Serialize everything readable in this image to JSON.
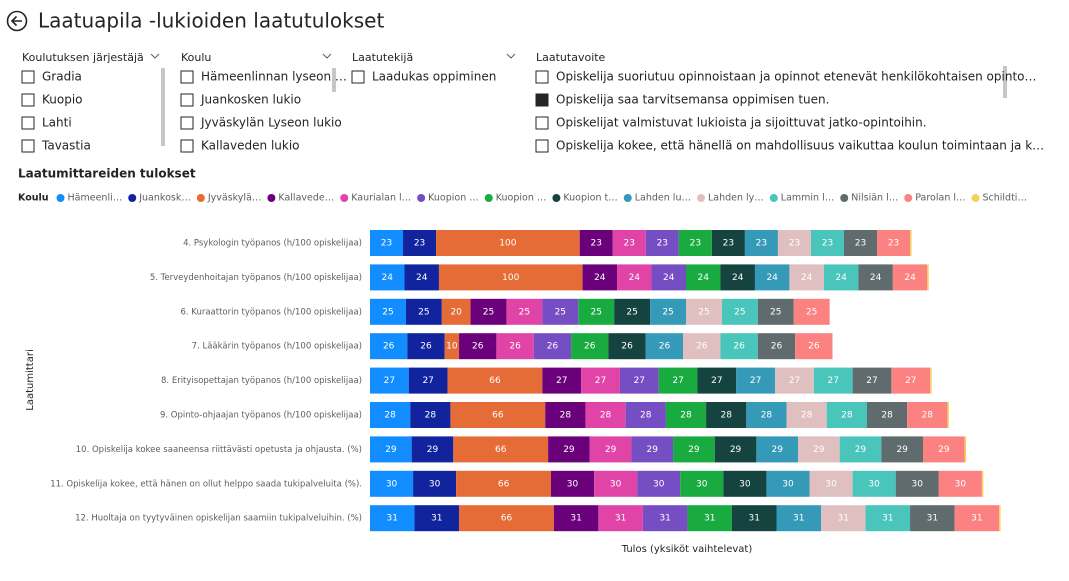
{
  "title": "Laatuapila -lukioiden laatutulokset",
  "slicers": [
    {
      "header": "Koulutuksen järjestäjä",
      "items": [
        {
          "label": "Gradia",
          "checked": false
        },
        {
          "label": "Kuopio",
          "checked": false
        },
        {
          "label": "Lahti",
          "checked": false
        },
        {
          "label": "Tavastia",
          "checked": false
        }
      ]
    },
    {
      "header": "Koulu",
      "items": [
        {
          "label": "Hämeenlinnan lyseon …",
          "checked": false
        },
        {
          "label": "Juankosken lukio",
          "checked": false
        },
        {
          "label": "Jyväskylän Lyseon lukio",
          "checked": false
        },
        {
          "label": "Kallaveden lukio",
          "checked": false
        }
      ]
    },
    {
      "header": "Laatutekijä",
      "items": [
        {
          "label": "Laadukas oppiminen",
          "checked": false
        }
      ]
    },
    {
      "header": "Laatutavoite",
      "items": [
        {
          "label": "Opiskelija suoriutuu opinnoistaan ja opinnot etenevät henkilökohtaisen opinto…",
          "checked": false
        },
        {
          "label": "Opiskelija saa tarvitsemansa oppimisen tuen.",
          "checked": true
        },
        {
          "label": "Opiskelijat valmistuvat lukioista ja sijoittuvat jatko-opintoihin.",
          "checked": false
        },
        {
          "label": "Opiskelija kokee, että hänellä on mahdollisuus vaikuttaa koulun toimintaan ja k…",
          "checked": false
        }
      ]
    }
  ],
  "chart_data": {
    "type": "bar",
    "orientation": "horizontal",
    "stacked": true,
    "title": "Laatumittareiden tulokset",
    "legend_title": "Koulu",
    "ylabel": "Laatumittari",
    "xlabel": "Tulos (yksiköt vaihtelevat)",
    "xlim": [
      0,
      440
    ],
    "categories": [
      "4. Psykologin työpanos (h/100 opiskelijaa)",
      "5. Terveydenhoitajan työpanos (h/100 opiskelijaa)",
      "6. Kuraattorin työpanos (h/100 opiskelijaa)",
      "7. Lääkärin työpanos (h/100 opiskelijaa)",
      "8. Erityisopettajan työpanos (h/100 opiskelijaa)",
      "9. Opinto-ohjaajan työpanos (h/100 opiskelijaa)",
      "10. Opiskelija kokee saaneensa riittävästi opetusta ja ohjausta. (%)",
      "11. Opiskelija kokee, että hänen on ollut helppo saada tukipalveluita (%).",
      "12. Huoltaja on tyytyväinen opiskelijan saamiin tukipalveluihin. (%)"
    ],
    "series": [
      {
        "name": "Hämeenli…",
        "color": "#118DFF",
        "values": [
          23,
          24,
          25,
          26,
          27,
          28,
          29,
          30,
          31
        ]
      },
      {
        "name": "Juankosk…",
        "color": "#12239E",
        "values": [
          23,
          24,
          25,
          26,
          27,
          28,
          29,
          30,
          31
        ]
      },
      {
        "name": "Jyväskylä…",
        "color": "#E66C37",
        "values": [
          100,
          100,
          20,
          10,
          66,
          66,
          66,
          66,
          66
        ]
      },
      {
        "name": "Kallavede…",
        "color": "#6B007B",
        "values": [
          23,
          24,
          25,
          26,
          27,
          28,
          29,
          30,
          31
        ]
      },
      {
        "name": "Kaurialan l…",
        "color": "#E044A7",
        "values": [
          23,
          24,
          25,
          26,
          27,
          28,
          29,
          30,
          31
        ]
      },
      {
        "name": "Kuopion …",
        "color": "#744EC2",
        "values": [
          23,
          24,
          25,
          26,
          27,
          28,
          29,
          30,
          31
        ]
      },
      {
        "name": "Kuopion …",
        "color": "#1AAB40",
        "values": [
          23,
          24,
          25,
          26,
          27,
          28,
          29,
          30,
          31
        ]
      },
      {
        "name": "Kuopion t…",
        "color": "#15433F",
        "values": [
          23,
          24,
          25,
          26,
          27,
          28,
          29,
          30,
          31
        ]
      },
      {
        "name": "Lahden lu…",
        "color": "#3599B8",
        "values": [
          23,
          24,
          25,
          26,
          27,
          28,
          29,
          30,
          31
        ]
      },
      {
        "name": "Lahden ly…",
        "color": "#DFBFBF",
        "values": [
          23,
          24,
          25,
          26,
          27,
          28,
          29,
          30,
          31
        ]
      },
      {
        "name": "Lammin l…",
        "color": "#4AC5BB",
        "values": [
          23,
          24,
          25,
          26,
          27,
          28,
          29,
          30,
          31
        ]
      },
      {
        "name": "Nilsiän l…",
        "color": "#5F6B6D",
        "values": [
          23,
          24,
          25,
          26,
          27,
          28,
          29,
          30,
          31
        ]
      },
      {
        "name": "Parolan l…",
        "color": "#FB8281",
        "values": [
          23,
          24,
          25,
          26,
          27,
          28,
          29,
          30,
          31
        ]
      },
      {
        "name": "Schildti…",
        "color": "#F4D25A",
        "labels": false,
        "values": [
          1,
          1,
          null,
          null,
          1,
          1,
          1,
          1,
          1
        ]
      }
    ]
  }
}
